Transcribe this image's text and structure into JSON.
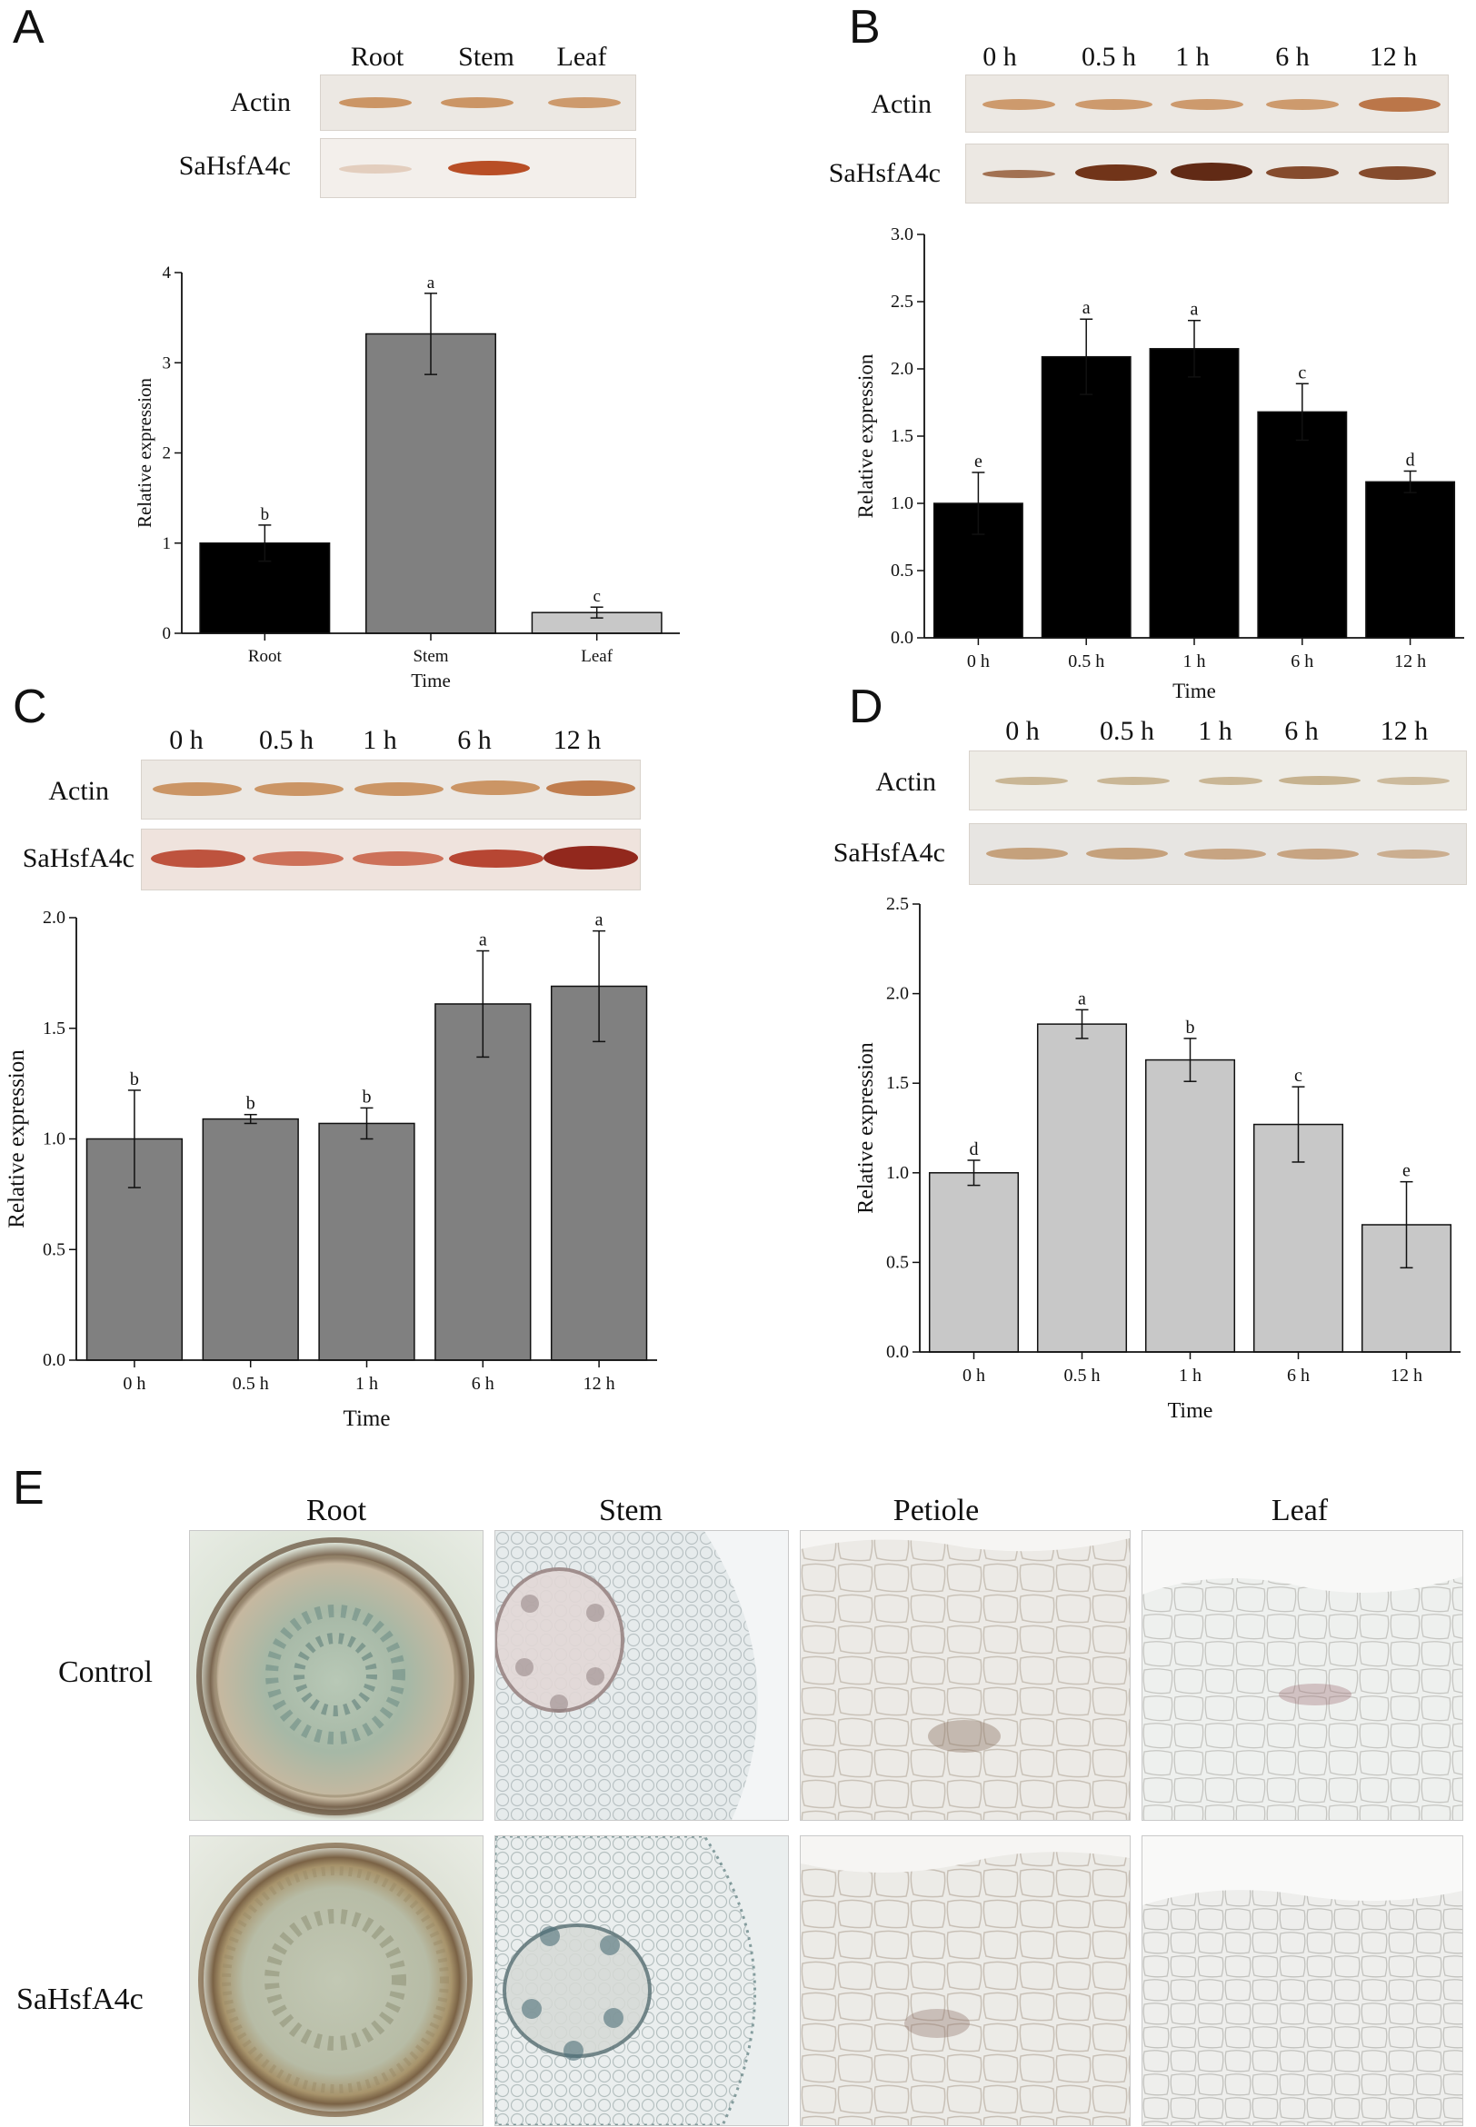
{
  "panels": {
    "A": {
      "label": "A"
    },
    "B": {
      "label": "B"
    },
    "C": {
      "label": "C"
    },
    "D": {
      "label": "D"
    },
    "E": {
      "label": "E"
    }
  },
  "blots": {
    "A": {
      "lanes": [
        "Root",
        "Stem",
        "Leaf"
      ],
      "rows": [
        "Actin",
        "SaHsfA4c"
      ]
    },
    "B": {
      "lanes": [
        "0 h",
        "0.5 h",
        "1 h",
        "6 h",
        "12 h"
      ],
      "rows": [
        "Actin",
        "SaHsfA4c"
      ]
    },
    "C": {
      "lanes": [
        "0 h",
        "0.5 h",
        "1 h",
        "6 h",
        "12 h"
      ],
      "rows": [
        "Actin",
        "SaHsfA4c"
      ]
    },
    "D": {
      "lanes": [
        "0 h",
        "0.5 h",
        "1 h",
        "6 h",
        "12 h"
      ],
      "rows": [
        "Actin",
        "SaHsfA4c"
      ]
    }
  },
  "chart_data": [
    {
      "id": "A",
      "type": "bar",
      "categories": [
        "Root",
        "Stem",
        "Leaf"
      ],
      "values": [
        1.0,
        3.32,
        0.23
      ],
      "errors": [
        0.2,
        0.45,
        0.06
      ],
      "letters": [
        "b",
        "a",
        "c"
      ],
      "colors": [
        "#000000",
        "#808080",
        "#c8c8c8"
      ],
      "xlabel": "Time",
      "ylabel": "Relative expression",
      "ylim": [
        0,
        4
      ],
      "yticks": [
        "0",
        "1",
        "2",
        "3",
        "4"
      ]
    },
    {
      "id": "B",
      "type": "bar",
      "categories": [
        "0 h",
        "0.5 h",
        "1 h",
        "6 h",
        "12 h"
      ],
      "values": [
        1.0,
        2.09,
        2.15,
        1.68,
        1.16
      ],
      "errors": [
        0.23,
        0.28,
        0.21,
        0.21,
        0.08
      ],
      "letters": [
        "e",
        "a",
        "a",
        "c",
        "d"
      ],
      "colors": [
        "#000000",
        "#000000",
        "#000000",
        "#000000",
        "#000000"
      ],
      "xlabel": "Time",
      "ylabel": "Relative expression",
      "ylim": [
        0,
        3
      ],
      "yticks": [
        "0.0",
        "0.5",
        "1.0",
        "1.5",
        "2.0",
        "2.5",
        "3.0"
      ]
    },
    {
      "id": "C",
      "type": "bar",
      "categories": [
        "0 h",
        "0.5 h",
        "1 h",
        "6 h",
        "12 h"
      ],
      "values": [
        1.0,
        1.09,
        1.07,
        1.61,
        1.69
      ],
      "errors": [
        0.22,
        0.02,
        0.07,
        0.24,
        0.25
      ],
      "letters": [
        "b",
        "b",
        "b",
        "a",
        "a"
      ],
      "colors": [
        "#808080",
        "#808080",
        "#808080",
        "#808080",
        "#808080"
      ],
      "xlabel": "Time",
      "ylabel": "Relative expression",
      "ylim": [
        0,
        2
      ],
      "yticks": [
        "0.0",
        "0.5",
        "1.0",
        "1.5",
        "2.0"
      ]
    },
    {
      "id": "D",
      "type": "bar",
      "categories": [
        "0 h",
        "0.5 h",
        "1 h",
        "6 h",
        "12 h"
      ],
      "values": [
        1.0,
        1.83,
        1.63,
        1.27,
        0.71
      ],
      "errors": [
        0.07,
        0.08,
        0.12,
        0.21,
        0.24
      ],
      "letters": [
        "d",
        "a",
        "b",
        "c",
        "e"
      ],
      "colors": [
        "#c8c8c8",
        "#c8c8c8",
        "#c8c8c8",
        "#c8c8c8",
        "#c8c8c8"
      ],
      "xlabel": "Time",
      "ylabel": "Relative expression",
      "ylim": [
        0,
        2.5
      ],
      "yticks": [
        "0.0",
        "0.5",
        "1.0",
        "1.5",
        "2.0",
        "2.5"
      ]
    }
  ],
  "micrographs": {
    "columns": [
      "Root",
      "Stem",
      "Petiole",
      "Leaf"
    ],
    "rows": [
      "Control",
      "SaHsfA4c"
    ]
  }
}
